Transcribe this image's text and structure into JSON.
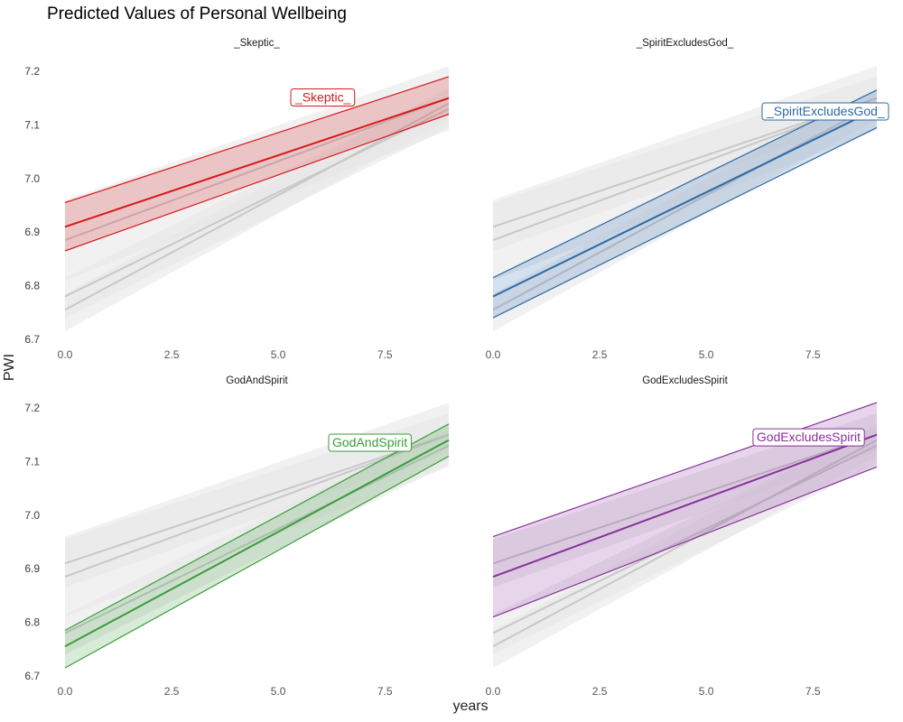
{
  "chart_data": {
    "type": "line",
    "title": "Predicted Values of Personal Wellbeing",
    "xlabel": "years",
    "ylabel": "PWI",
    "xlim": [
      0,
      9
    ],
    "ylim": [
      6.7,
      7.22
    ],
    "x_ticks": [
      0,
      2.5,
      5,
      7.5
    ],
    "x_tick_labels": [
      "0.0",
      "2.5",
      "5.0",
      "7.5"
    ],
    "y_ticks": [
      6.7,
      6.8,
      6.9,
      7.0,
      7.1,
      7.2
    ],
    "y_tick_labels": [
      "6.7",
      "6.8",
      "6.9",
      "7.0",
      "7.1",
      "7.2"
    ],
    "grid": false,
    "legend": "none (series labeled inside each panel)",
    "x": [
      0,
      9
    ],
    "series": [
      {
        "name": "_Skeptic_",
        "color": "#d7191c",
        "line": [
          6.91,
          7.15
        ],
        "ci_upper": [
          6.955,
          7.19
        ],
        "ci_lower": [
          6.865,
          7.12
        ]
      },
      {
        "name": "_SpiritExcludesGod_",
        "color": "#2c6aa8",
        "line": [
          6.78,
          7.13
        ],
        "ci_upper": [
          6.815,
          7.165
        ],
        "ci_lower": [
          6.74,
          7.095
        ]
      },
      {
        "name": "GodAndSpirit",
        "color": "#3a9c3a",
        "line": [
          6.755,
          7.14
        ],
        "ci_upper": [
          6.785,
          7.17
        ],
        "ci_lower": [
          6.715,
          7.11
        ]
      },
      {
        "name": "GodExcludesSpirit",
        "color": "#88309a",
        "line": [
          6.885,
          7.15
        ],
        "ci_upper": [
          6.96,
          7.21
        ],
        "ci_lower": [
          6.81,
          7.09
        ]
      }
    ],
    "panels": [
      {
        "title": "_Skeptic_",
        "highlight": 0,
        "label_x": 6.05,
        "label_y": 7.152
      },
      {
        "title": "_SpiritExcludesGod_",
        "highlight": 1,
        "label_x": 7.8,
        "label_y": 7.126
      },
      {
        "title": "GodAndSpirit",
        "highlight": 2,
        "label_x": 7.15,
        "label_y": 7.136
      },
      {
        "title": "GodExcludesSpirit",
        "highlight": 3,
        "label_x": 7.4,
        "label_y": 7.146
      }
    ],
    "background_line_color": "#c8c8c8",
    "background_band_color": "#e6e6e6"
  }
}
